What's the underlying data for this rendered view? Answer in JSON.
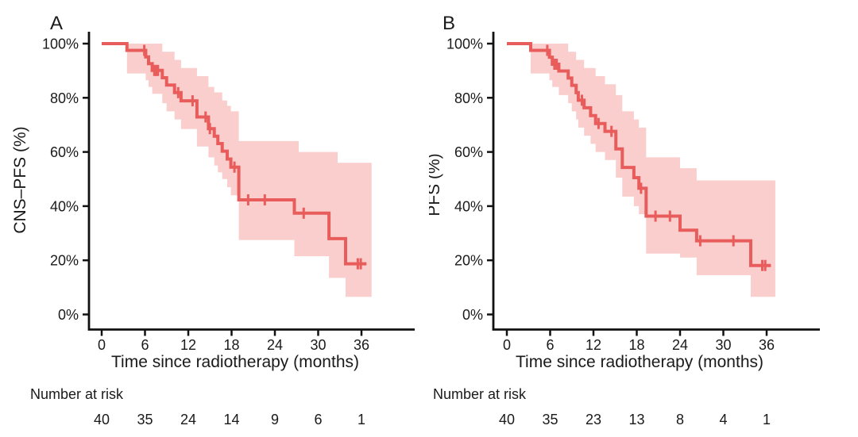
{
  "figure": {
    "kind": "kaplan-meier-survival-figure",
    "panel_count": 2
  },
  "chart_data": [
    {
      "type": "line",
      "subtype": "kaplan-meier-step",
      "panel_label": "A",
      "ylabel": "CNS–PFS (%)",
      "xlabel": "Time since radiotherapy (months)",
      "xlim": [
        0,
        43
      ],
      "ylim": [
        0,
        104
      ],
      "grid": "off",
      "legend": "none",
      "xticks": [
        0,
        6,
        12,
        18,
        24,
        30,
        36
      ],
      "xtick_labels": [
        "0",
        "6",
        "12",
        "18",
        "24",
        "30",
        "36"
      ],
      "yticks": [
        0,
        20,
        40,
        60,
        80,
        100
      ],
      "ytick_labels": [
        "0%",
        "20%",
        "40%",
        "60%",
        "80%",
        "100%"
      ],
      "line_color": "#e85d5b",
      "ci_color": "#f9cecd",
      "steps": [
        [
          0,
          100
        ],
        [
          3.5,
          97.5
        ],
        [
          6.1,
          95.1
        ],
        [
          6.5,
          92.6
        ],
        [
          7.0,
          90.1
        ],
        [
          8.4,
          87.4
        ],
        [
          9.0,
          84.7
        ],
        [
          10.1,
          81.9
        ],
        [
          11.0,
          78.9
        ],
        [
          13.2,
          72.9
        ],
        [
          14.8,
          68.6
        ],
        [
          15.6,
          65.8
        ],
        [
          16.1,
          63.1
        ],
        [
          16.7,
          60.3
        ],
        [
          17.4,
          57.4
        ],
        [
          17.9,
          54.4
        ],
        [
          19.0,
          42.3
        ],
        [
          26.7,
          37.4
        ],
        [
          31.5,
          28.0
        ],
        [
          33.8,
          18.7
        ]
      ],
      "end_time": 36.7,
      "censor_marks": [
        [
          5.9,
          97.5
        ],
        [
          7.3,
          90.1
        ],
        [
          7.55,
          90.1
        ],
        [
          7.8,
          90.1
        ],
        [
          10.6,
          81.9
        ],
        [
          12.6,
          78.9
        ],
        [
          14.4,
          72.9
        ],
        [
          15.0,
          68.6
        ],
        [
          18.4,
          54.4
        ],
        [
          20.3,
          42.3
        ],
        [
          22.6,
          42.3
        ],
        [
          28.0,
          37.4
        ],
        [
          35.5,
          18.7
        ],
        [
          35.9,
          18.7
        ]
      ],
      "ci_upper": [
        [
          3.5,
          100
        ],
        [
          8.4,
          97
        ],
        [
          10.1,
          94
        ],
        [
          11.0,
          91
        ],
        [
          13.2,
          88
        ],
        [
          14.8,
          84
        ],
        [
          15.6,
          82
        ],
        [
          16.7,
          79
        ],
        [
          17.4,
          77
        ],
        [
          17.9,
          75
        ],
        [
          19.0,
          64
        ],
        [
          27.3,
          60
        ],
        [
          32.7,
          56
        ]
      ],
      "ci_lower": [
        [
          3.5,
          89
        ],
        [
          6.1,
          86.5
        ],
        [
          6.5,
          84
        ],
        [
          7.0,
          81.5
        ],
        [
          8.4,
          78
        ],
        [
          9.0,
          75
        ],
        [
          10.1,
          72
        ],
        [
          11.0,
          68.5
        ],
        [
          13.2,
          62
        ],
        [
          14.8,
          58
        ],
        [
          15.6,
          55
        ],
        [
          16.1,
          52.5
        ],
        [
          16.7,
          50
        ],
        [
          17.4,
          47
        ],
        [
          17.9,
          44
        ],
        [
          19.0,
          27.5
        ],
        [
          26.7,
          21.5
        ],
        [
          31.5,
          13.5
        ],
        [
          33.8,
          6.5
        ]
      ],
      "ci_end_time": 37.4,
      "risk_label": "Number at risk",
      "risk_times": [
        0,
        6,
        12,
        18,
        24,
        30,
        36
      ],
      "risk_counts": [
        "40",
        "35",
        "24",
        "14",
        "9",
        "6",
        "1"
      ]
    },
    {
      "type": "line",
      "subtype": "kaplan-meier-step",
      "panel_label": "B",
      "ylabel": "PFS (%)",
      "xlabel": "Time since radiotherapy (months)",
      "xlim": [
        0,
        43
      ],
      "ylim": [
        0,
        104
      ],
      "grid": "off",
      "legend": "none",
      "xticks": [
        0,
        6,
        12,
        18,
        24,
        30,
        36
      ],
      "xtick_labels": [
        "0",
        "6",
        "12",
        "18",
        "24",
        "30",
        "36"
      ],
      "yticks": [
        0,
        20,
        40,
        60,
        80,
        100
      ],
      "ytick_labels": [
        "0%",
        "20%",
        "40%",
        "60%",
        "80%",
        "100%"
      ],
      "line_color": "#e85d5b",
      "ci_color": "#f9cecd",
      "steps": [
        [
          0,
          100
        ],
        [
          3.3,
          97.5
        ],
        [
          5.9,
          95.0
        ],
        [
          6.3,
          92.4
        ],
        [
          7.2,
          89.9
        ],
        [
          8.5,
          87.3
        ],
        [
          9.0,
          84.6
        ],
        [
          9.6,
          81.9
        ],
        [
          9.9,
          79.1
        ],
        [
          10.7,
          76.3
        ],
        [
          11.6,
          73.4
        ],
        [
          12.3,
          70.5
        ],
        [
          13.6,
          67.6
        ],
        [
          15.1,
          61.1
        ],
        [
          16.0,
          54.3
        ],
        [
          17.6,
          50.5
        ],
        [
          18.3,
          46.6
        ],
        [
          19.3,
          36.3
        ],
        [
          24.0,
          31.1
        ],
        [
          26.3,
          27.2
        ],
        [
          33.8,
          18.1
        ]
      ],
      "end_time": 36.6,
      "censor_marks": [
        [
          5.6,
          97.5
        ],
        [
          6.6,
          92.4
        ],
        [
          6.9,
          92.4
        ],
        [
          10.4,
          79.1
        ],
        [
          12.7,
          70.5
        ],
        [
          14.5,
          67.6
        ],
        [
          18.6,
          46.6
        ],
        [
          20.6,
          36.3
        ],
        [
          22.6,
          36.3
        ],
        [
          26.8,
          27.2
        ],
        [
          31.4,
          27.2
        ],
        [
          35.4,
          18.1
        ],
        [
          35.8,
          18.1
        ]
      ],
      "ci_upper": [
        [
          3.3,
          100
        ],
        [
          8.5,
          97
        ],
        [
          9.6,
          94
        ],
        [
          10.7,
          91
        ],
        [
          12.3,
          88
        ],
        [
          13.6,
          85
        ],
        [
          15.1,
          81
        ],
        [
          16.0,
          75
        ],
        [
          17.6,
          72
        ],
        [
          18.3,
          69
        ],
        [
          19.3,
          58
        ],
        [
          24.0,
          54
        ],
        [
          26.3,
          49.5
        ]
      ],
      "ci_lower": [
        [
          3.3,
          89
        ],
        [
          5.9,
          86.5
        ],
        [
          6.3,
          84
        ],
        [
          7.2,
          81
        ],
        [
          8.5,
          78
        ],
        [
          9.0,
          75
        ],
        [
          9.6,
          72
        ],
        [
          9.9,
          69
        ],
        [
          10.7,
          66
        ],
        [
          11.6,
          63
        ],
        [
          12.3,
          60
        ],
        [
          13.6,
          57
        ],
        [
          15.1,
          50.5
        ],
        [
          16.0,
          43.5
        ],
        [
          17.6,
          40
        ],
        [
          18.3,
          37
        ],
        [
          19.3,
          22.5
        ],
        [
          24.0,
          21
        ],
        [
          26.3,
          14.5
        ],
        [
          33.8,
          6.5
        ]
      ],
      "ci_end_time": 37.2,
      "risk_label": "Number at risk",
      "risk_times": [
        0,
        6,
        12,
        18,
        24,
        30,
        36
      ],
      "risk_counts": [
        "40",
        "35",
        "23",
        "13",
        "8",
        "4",
        "1"
      ]
    }
  ]
}
